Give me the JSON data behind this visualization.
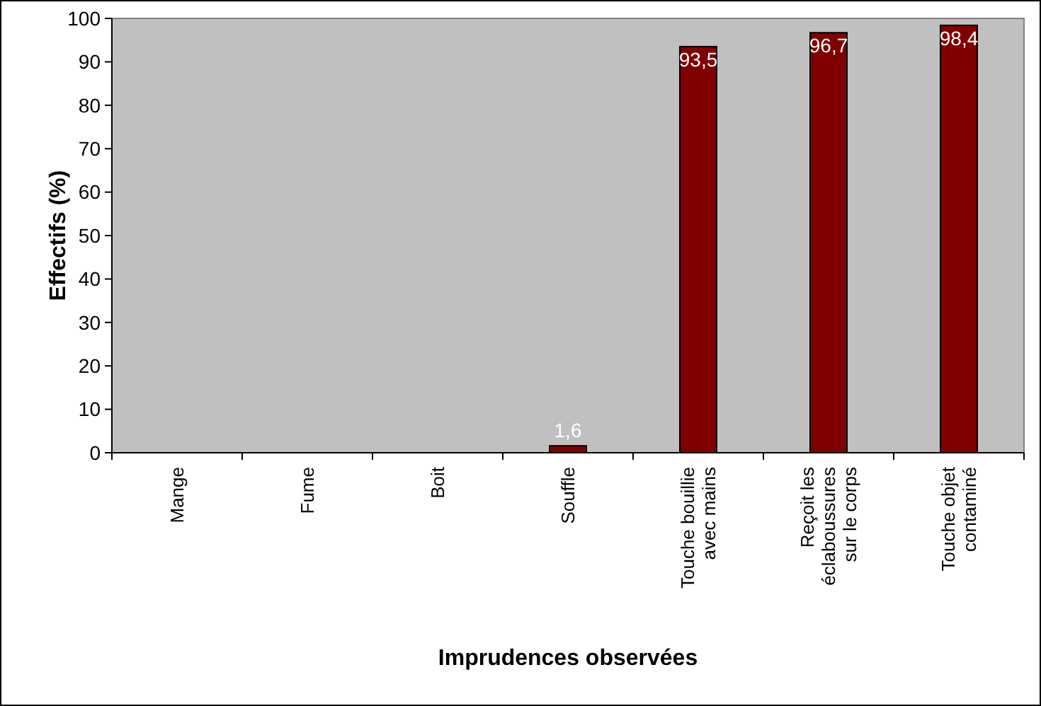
{
  "chart_data": {
    "type": "bar",
    "xlabel": "Imprudences observées",
    "ylabel": "Effectifs (%)",
    "categories": [
      "Mange",
      "Fume",
      "Boit",
      "Souffle",
      "Touche bouillie avec mains",
      "Reçoit les éclaboussures sur le corps",
      "Touche objet contaminé"
    ],
    "values": [
      0,
      0,
      0,
      1.6,
      93.5,
      96.7,
      98.4
    ],
    "value_labels": [
      null,
      null,
      null,
      "1,6",
      "93,5",
      "96,7",
      "98,4"
    ],
    "color": "#800000",
    "ylim": [
      0,
      100
    ],
    "yticks": [
      0,
      10,
      20,
      30,
      40,
      50,
      60,
      70,
      80,
      90,
      100
    ],
    "grid": false
  }
}
